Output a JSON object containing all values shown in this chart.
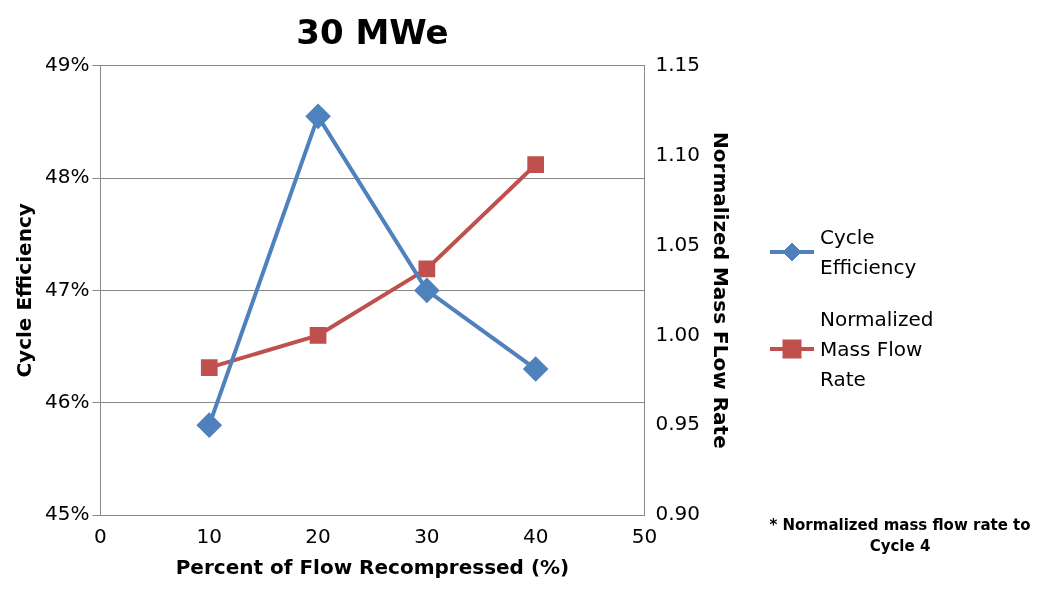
{
  "chart_data": {
    "type": "line",
    "title": "30 MWe",
    "xlabel": "Percent of Flow Recompressed (%)",
    "ylabel": "Cycle Efficiency",
    "y2label": "Normalized Mass FLow Rate",
    "x": [
      10,
      20,
      30,
      40
    ],
    "xlim": [
      0,
      50
    ],
    "xticks": [
      0,
      10,
      20,
      30,
      40,
      50
    ],
    "ylim": [
      45,
      49
    ],
    "yticks": [
      {
        "value": 45,
        "label": "45%"
      },
      {
        "value": 46,
        "label": "46%"
      },
      {
        "value": 47,
        "label": "47%"
      },
      {
        "value": 48,
        "label": "48%"
      },
      {
        "value": 49,
        "label": "49%"
      }
    ],
    "y2lim": [
      0.9,
      1.15
    ],
    "y2ticks": [
      {
        "value": 0.9,
        "label": "0.90"
      },
      {
        "value": 0.95,
        "label": "0.95"
      },
      {
        "value": 1.0,
        "label": "1.00"
      },
      {
        "value": 1.05,
        "label": "1.05"
      },
      {
        "value": 1.1,
        "label": "1.10"
      },
      {
        "value": 1.15,
        "label": "1.15"
      }
    ],
    "series": [
      {
        "name": "Cycle Efficiency",
        "color": "#4f81bd",
        "marker": "diamond",
        "values": [
          45.8,
          48.55,
          47.0,
          46.3
        ]
      },
      {
        "name": "Normalized Mass Flow Rate",
        "color": "#c0504d",
        "marker": "square",
        "axis": "y2",
        "values": [
          0.982,
          1.0,
          1.037,
          1.095
        ]
      }
    ],
    "grid": "y",
    "legend": "right",
    "line_style": "solid",
    "annotations": [
      "* Normalized mass flow rate to Cycle 4"
    ]
  }
}
